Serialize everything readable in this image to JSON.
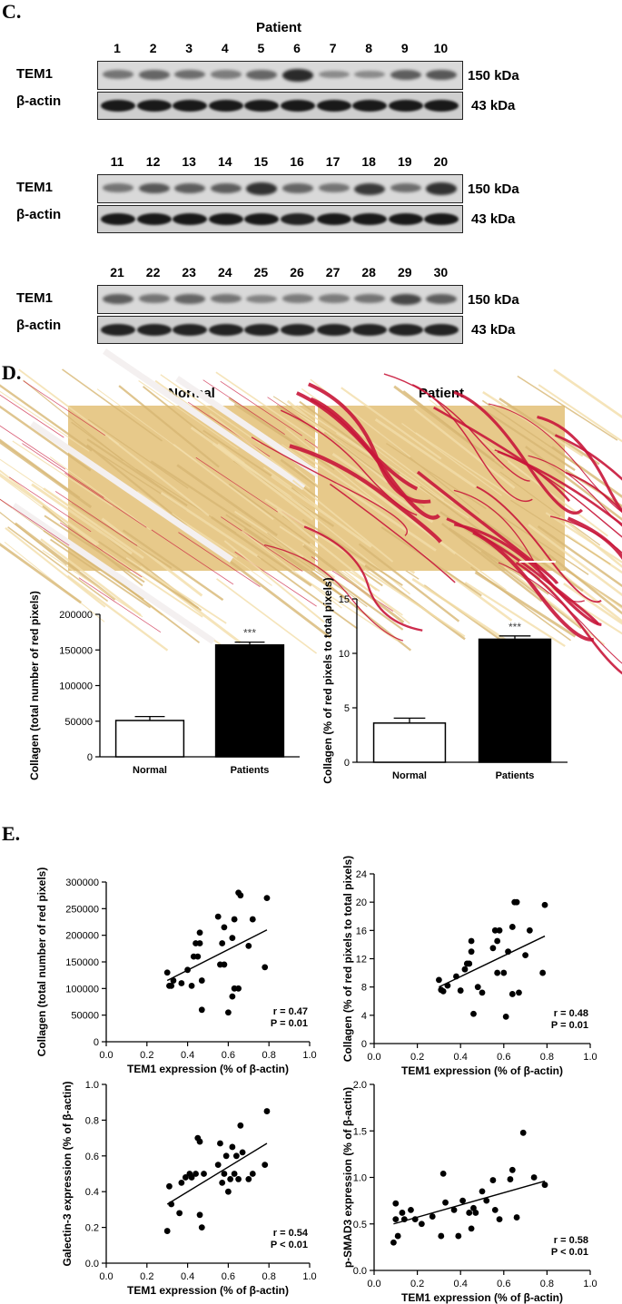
{
  "panel_c": {
    "letter": "C.",
    "patient_header": "Patient",
    "tem1_label": "TEM1",
    "actin_label": "β-actin",
    "kda_tem1": "150 kDa",
    "kda_actin": "43 kDa",
    "rows": [
      {
        "lanes": [
          "1",
          "2",
          "3",
          "4",
          "5",
          "6",
          "7",
          "8",
          "9",
          "10"
        ],
        "tem1_intensity": [
          0.35,
          0.45,
          0.4,
          0.3,
          0.45,
          0.85,
          0.2,
          0.2,
          0.5,
          0.55
        ],
        "actin_intensity": [
          0.95,
          0.95,
          0.95,
          0.95,
          0.95,
          0.95,
          0.95,
          0.95,
          0.95,
          0.95
        ]
      },
      {
        "lanes": [
          "11",
          "12",
          "13",
          "14",
          "15",
          "16",
          "17",
          "18",
          "19",
          "20"
        ],
        "tem1_intensity": [
          0.35,
          0.55,
          0.5,
          0.5,
          0.8,
          0.45,
          0.35,
          0.75,
          0.4,
          0.8
        ],
        "actin_intensity": [
          0.95,
          0.95,
          0.95,
          0.95,
          0.95,
          0.9,
          0.95,
          0.95,
          0.95,
          0.95
        ]
      },
      {
        "lanes": [
          "21",
          "22",
          "23",
          "24",
          "25",
          "26",
          "27",
          "28",
          "29",
          "30"
        ],
        "tem1_intensity": [
          0.5,
          0.35,
          0.45,
          0.35,
          0.25,
          0.3,
          0.3,
          0.35,
          0.65,
          0.5
        ],
        "actin_intensity": [
          0.9,
          0.9,
          0.9,
          0.9,
          0.9,
          0.9,
          0.9,
          0.9,
          0.9,
          0.9
        ]
      }
    ]
  },
  "panel_d": {
    "letter": "D.",
    "histo_normal_title": "Normal",
    "histo_patient_title": "Patient"
  },
  "panel_e": {
    "letter": "E."
  },
  "colors": {
    "histo_base": "#e7c98a",
    "collagen_red": "#c8163a"
  },
  "chart_data": [
    {
      "type": "bar",
      "categories": [
        "Normal",
        "Patients"
      ],
      "values": [
        51000,
        157000
      ],
      "errors": [
        5500,
        4000
      ],
      "fills": [
        "#ffffff",
        "#000000"
      ],
      "ylabel": "Collagen (total number of red pixels)",
      "ylim": [
        0,
        200000
      ],
      "yticks": [
        0,
        50000,
        100000,
        150000,
        200000
      ],
      "significance": "***"
    },
    {
      "type": "bar",
      "categories": [
        "Normal",
        "Patients"
      ],
      "values": [
        3.6,
        11.3
      ],
      "errors": [
        0.45,
        0.3
      ],
      "fills": [
        "#ffffff",
        "#000000"
      ],
      "ylabel": "Collagen (% of red pixels to total pixels)",
      "ylim": [
        0,
        15
      ],
      "yticks": [
        0,
        5,
        10,
        15
      ],
      "significance": "***"
    },
    {
      "type": "scatter",
      "xlabel": "TEM1 expression (% of β-actin)",
      "ylabel": "Collagen (total number of red pixels)",
      "xlim": [
        0,
        1.0
      ],
      "ylim": [
        0,
        300000
      ],
      "xticks": [
        "0.0",
        "0.2",
        "0.4",
        "0.6",
        "0.8",
        "1.0"
      ],
      "yticks": [
        "0",
        "50000",
        "100000",
        "150000",
        "200000",
        "250000",
        "300000"
      ],
      "points": [
        [
          0.3,
          130000
        ],
        [
          0.31,
          105000
        ],
        [
          0.32,
          105000
        ],
        [
          0.33,
          115000
        ],
        [
          0.37,
          110000
        ],
        [
          0.4,
          135000
        ],
        [
          0.42,
          105000
        ],
        [
          0.43,
          160000
        ],
        [
          0.44,
          185000
        ],
        [
          0.45,
          160000
        ],
        [
          0.46,
          205000
        ],
        [
          0.46,
          185000
        ],
        [
          0.47,
          115000
        ],
        [
          0.47,
          60000
        ],
        [
          0.55,
          235000
        ],
        [
          0.56,
          145000
        ],
        [
          0.57,
          185000
        ],
        [
          0.58,
          215000
        ],
        [
          0.58,
          145000
        ],
        [
          0.6,
          55000
        ],
        [
          0.62,
          85000
        ],
        [
          0.62,
          195000
        ],
        [
          0.63,
          230000
        ],
        [
          0.63,
          100000
        ],
        [
          0.65,
          100000
        ],
        [
          0.65,
          280000
        ],
        [
          0.66,
          275000
        ],
        [
          0.7,
          180000
        ],
        [
          0.72,
          230000
        ],
        [
          0.78,
          140000
        ],
        [
          0.79,
          270000
        ]
      ],
      "fit": [
        [
          0.3,
          115000
        ],
        [
          0.79,
          210000
        ]
      ],
      "stats": [
        "r = 0.47",
        "P = 0.01"
      ]
    },
    {
      "type": "scatter",
      "xlabel": "TEM1 expression (% of β-actin)",
      "ylabel": "Collagen (% of red pixels to total pixels)",
      "xlim": [
        0,
        1.0
      ],
      "ylim": [
        0,
        24
      ],
      "xticks": [
        "0.0",
        "0.2",
        "0.4",
        "0.6",
        "0.8",
        "1.0"
      ],
      "yticks": [
        "0",
        "4",
        "8",
        "12",
        "16",
        "20",
        "24"
      ],
      "points": [
        [
          0.3,
          9.0
        ],
        [
          0.31,
          7.6
        ],
        [
          0.32,
          7.4
        ],
        [
          0.34,
          8.2
        ],
        [
          0.38,
          9.5
        ],
        [
          0.4,
          7.5
        ],
        [
          0.42,
          10.5
        ],
        [
          0.43,
          11.3
        ],
        [
          0.44,
          11.3
        ],
        [
          0.45,
          14.5
        ],
        [
          0.45,
          13.0
        ],
        [
          0.46,
          4.2
        ],
        [
          0.48,
          8.0
        ],
        [
          0.5,
          7.2
        ],
        [
          0.55,
          13.5
        ],
        [
          0.56,
          16.0
        ],
        [
          0.57,
          14.5
        ],
        [
          0.57,
          10.0
        ],
        [
          0.58,
          16.0
        ],
        [
          0.6,
          10.0
        ],
        [
          0.61,
          3.8
        ],
        [
          0.62,
          13.0
        ],
        [
          0.64,
          16.5
        ],
        [
          0.64,
          7.0
        ],
        [
          0.65,
          20.0
        ],
        [
          0.66,
          20.0
        ],
        [
          0.67,
          7.2
        ],
        [
          0.7,
          12.5
        ],
        [
          0.72,
          16.0
        ],
        [
          0.78,
          10.0
        ],
        [
          0.79,
          19.6
        ]
      ],
      "fit": [
        [
          0.3,
          8.0
        ],
        [
          0.79,
          15.2
        ]
      ],
      "stats": [
        "r = 0.48",
        "P = 0.01"
      ]
    },
    {
      "type": "scatter",
      "xlabel": "TEM1 expression (% of β-actin)",
      "ylabel": "Galectin-3 expression (% of β-actin)",
      "xlim": [
        0,
        1.0
      ],
      "ylim": [
        0,
        1.0
      ],
      "xticks": [
        "0.0",
        "0.2",
        "0.4",
        "0.6",
        "0.8",
        "1.0"
      ],
      "yticks": [
        "0.0",
        "0.2",
        "0.4",
        "0.6",
        "0.8",
        "1.0"
      ],
      "points": [
        [
          0.3,
          0.18
        ],
        [
          0.31,
          0.43
        ],
        [
          0.32,
          0.33
        ],
        [
          0.36,
          0.28
        ],
        [
          0.37,
          0.45
        ],
        [
          0.39,
          0.48
        ],
        [
          0.41,
          0.5
        ],
        [
          0.42,
          0.48
        ],
        [
          0.44,
          0.5
        ],
        [
          0.45,
          0.7
        ],
        [
          0.46,
          0.68
        ],
        [
          0.46,
          0.27
        ],
        [
          0.47,
          0.2
        ],
        [
          0.48,
          0.5
        ],
        [
          0.55,
          0.55
        ],
        [
          0.56,
          0.67
        ],
        [
          0.57,
          0.45
        ],
        [
          0.58,
          0.5
        ],
        [
          0.59,
          0.6
        ],
        [
          0.6,
          0.4
        ],
        [
          0.61,
          0.47
        ],
        [
          0.62,
          0.65
        ],
        [
          0.63,
          0.5
        ],
        [
          0.64,
          0.6
        ],
        [
          0.65,
          0.47
        ],
        [
          0.66,
          0.77
        ],
        [
          0.67,
          0.62
        ],
        [
          0.7,
          0.47
        ],
        [
          0.72,
          0.5
        ],
        [
          0.78,
          0.55
        ],
        [
          0.79,
          0.85
        ]
      ],
      "fit": [
        [
          0.3,
          0.33
        ],
        [
          0.79,
          0.67
        ]
      ],
      "stats": [
        "r = 0.54",
        "P < 0.01"
      ]
    },
    {
      "type": "scatter",
      "xlabel": "TEM1 expression (% of β-actin)",
      "ylabel": "p-SMAD3 expression (% of β-actin)",
      "xlim": [
        0,
        1.0
      ],
      "ylim": [
        0,
        2.0
      ],
      "xticks": [
        "0.0",
        "0.2",
        "0.4",
        "0.6",
        "0.8",
        "1.0"
      ],
      "yticks": [
        "0.0",
        "0.5",
        "1.0",
        "1.5",
        "2.0"
      ],
      "points": [
        [
          0.09,
          0.3
        ],
        [
          0.1,
          0.55
        ],
        [
          0.1,
          0.72
        ],
        [
          0.11,
          0.37
        ],
        [
          0.13,
          0.62
        ],
        [
          0.14,
          0.55
        ],
        [
          0.17,
          0.65
        ],
        [
          0.19,
          0.55
        ],
        [
          0.22,
          0.5
        ],
        [
          0.27,
          0.58
        ],
        [
          0.31,
          0.37
        ],
        [
          0.32,
          1.04
        ],
        [
          0.33,
          0.73
        ],
        [
          0.37,
          0.65
        ],
        [
          0.39,
          0.37
        ],
        [
          0.41,
          0.75
        ],
        [
          0.44,
          0.62
        ],
        [
          0.45,
          0.45
        ],
        [
          0.46,
          0.67
        ],
        [
          0.47,
          0.62
        ],
        [
          0.5,
          0.85
        ],
        [
          0.52,
          0.75
        ],
        [
          0.55,
          0.97
        ],
        [
          0.56,
          0.65
        ],
        [
          0.58,
          0.55
        ],
        [
          0.63,
          0.98
        ],
        [
          0.64,
          1.08
        ],
        [
          0.66,
          0.57
        ],
        [
          0.69,
          1.48
        ],
        [
          0.74,
          1.0
        ],
        [
          0.79,
          0.92
        ]
      ],
      "fit": [
        [
          0.09,
          0.5
        ],
        [
          0.79,
          0.96
        ]
      ],
      "stats": [
        "r = 0.58",
        "P < 0.01"
      ]
    }
  ]
}
